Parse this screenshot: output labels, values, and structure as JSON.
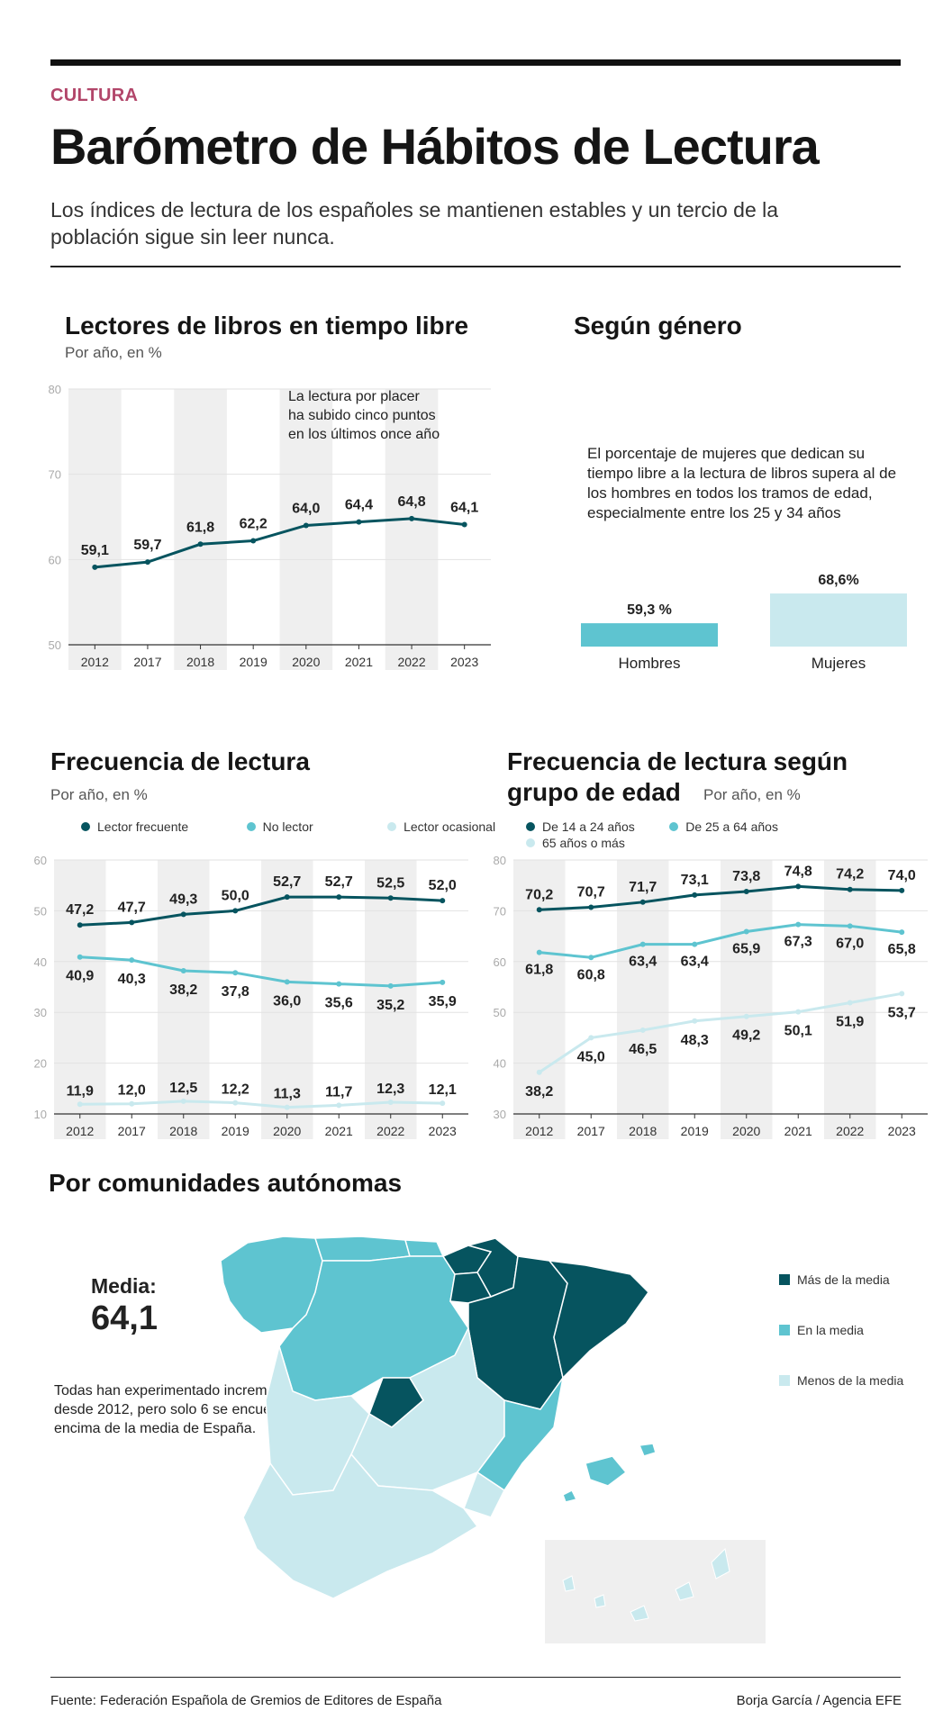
{
  "header": {
    "section": "CULTURA",
    "title": "Barómetro de Hábitos de Lectura",
    "subtitle": "Los índices de lectura de los españoles se mantienen estables y un tercio de la población sigue sin leer nunca."
  },
  "colors": {
    "dark": "#06545f",
    "mid": "#5ec4d0",
    "light": "#c9e9ee",
    "band": "#efefef",
    "accent": "#b2466a"
  },
  "chart_data": [
    {
      "id": "lectores",
      "type": "line",
      "title": "Lectores de libros en tiempo libre",
      "subtitle": "Por año, en %",
      "annotation": [
        "La lectura por placer",
        "ha subido cinco puntos",
        "en los últimos once año"
      ],
      "categories": [
        "2012",
        "2017",
        "2018",
        "2019",
        "2020",
        "2021",
        "2022",
        "2023"
      ],
      "series": [
        {
          "values": [
            59.1,
            59.7,
            61.8,
            62.2,
            64.0,
            64.4,
            64.8,
            64.1
          ],
          "labels": [
            "59,1",
            "59,7",
            "61,8",
            "62,2",
            "64,0",
            "64,4",
            "64,8",
            "64,1"
          ]
        }
      ],
      "ylim": [
        50,
        80
      ],
      "yticks": [
        50,
        60,
        70,
        80
      ],
      "grid": true
    },
    {
      "id": "genero",
      "type": "bar",
      "title": "Según género",
      "note": "El porcentaje de mujeres que dedican su tiempo libre a la lectura de libros supera al de los hombres en todos los tramos de edad, especialmente entre los 25 y 34 años",
      "categories": [
        "Hombres",
        "Mujeres"
      ],
      "values": [
        59.3,
        68.6
      ],
      "labels": [
        "59,3 %",
        "68,6%"
      ]
    },
    {
      "id": "frecuencia",
      "type": "line",
      "title": "Frecuencia de lectura",
      "subtitle": "Por año, en %",
      "categories": [
        "2012",
        "2017",
        "2018",
        "2019",
        "2020",
        "2021",
        "2022",
        "2023"
      ],
      "series": [
        {
          "name": "Lector frecuente",
          "values": [
            47.2,
            47.7,
            49.3,
            50.0,
            52.7,
            52.7,
            52.5,
            52.0
          ],
          "labels": [
            "47,2",
            "47,7",
            "49,3",
            "50,0",
            "52,7",
            "52,7",
            "52,5",
            "52,0"
          ]
        },
        {
          "name": "No lector",
          "values": [
            40.9,
            40.3,
            38.2,
            37.8,
            36.0,
            35.6,
            35.2,
            35.9
          ],
          "labels": [
            "40,9",
            "40,3",
            "38,2",
            "37,8",
            "36,0",
            "35,6",
            "35,2",
            "35,9"
          ]
        },
        {
          "name": "Lector ocasional",
          "values": [
            11.9,
            12.0,
            12.5,
            12.2,
            11.3,
            11.7,
            12.3,
            12.1
          ],
          "labels": [
            "11,9",
            "12,0",
            "12,5",
            "12,2",
            "11,3",
            "11,7",
            "12,3",
            "12,1"
          ]
        }
      ],
      "ylim": [
        10,
        60
      ],
      "yticks": [
        10,
        20,
        30,
        40,
        50,
        60
      ],
      "legend": "top",
      "grid": true
    },
    {
      "id": "edad",
      "type": "line",
      "title": "Frecuencia de lectura según grupo de edad",
      "title_lines": [
        "Frecuencia de lectura según",
        "grupo de edad"
      ],
      "subtitle": "Por año, en %",
      "categories": [
        "2012",
        "2017",
        "2018",
        "2019",
        "2020",
        "2021",
        "2022",
        "2023"
      ],
      "series": [
        {
          "name": "De 14 a 24 años",
          "values": [
            70.2,
            70.7,
            71.7,
            73.1,
            73.8,
            74.8,
            74.2,
            74.0
          ],
          "labels": [
            "70,2",
            "70,7",
            "71,7",
            "73,1",
            "73,8",
            "74,8",
            "74,2",
            "74,0"
          ]
        },
        {
          "name": "De 25 a 64 años",
          "values": [
            61.8,
            60.8,
            63.4,
            63.4,
            65.9,
            67.3,
            67.0,
            65.8
          ],
          "labels": [
            "61,8",
            "60,8",
            "63,4",
            "63,4",
            "65,9",
            "67,3",
            "67,0",
            "65,8"
          ]
        },
        {
          "name": "65 años o más",
          "values": [
            38.2,
            45.0,
            46.5,
            48.3,
            49.2,
            50.1,
            51.9,
            53.7
          ],
          "labels": [
            "38,2",
            "45,0",
            "46,5",
            "48,3",
            "49,2",
            "50,1",
            "51,9",
            "53,7"
          ]
        }
      ],
      "ylim": [
        30,
        80
      ],
      "yticks": [
        30,
        40,
        50,
        60,
        70,
        80
      ],
      "legend": "top",
      "grid": true
    },
    {
      "id": "comunidades",
      "type": "map",
      "title": "Por comunidades autónomas",
      "media_label": "Media:",
      "media_value": "64,1",
      "note": "Todas han experimentado incrementos desde 2012, pero solo 6 se encuentran por encima de la media de España.",
      "legend": [
        "Más de la media",
        "En la media",
        "Menos de la media"
      ]
    }
  ],
  "footer": {
    "source": "Fuente: Federación Española de Gremios de Editores de España",
    "credit": "Borja García / Agencia EFE"
  }
}
